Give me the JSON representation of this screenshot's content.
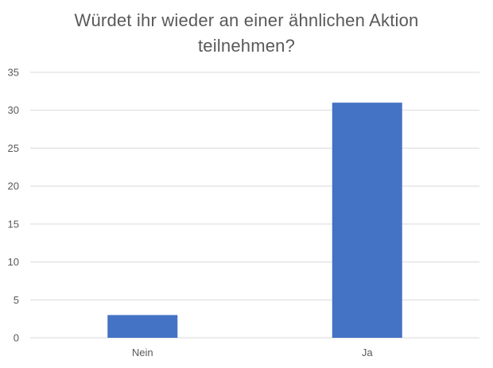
{
  "chart_data": {
    "type": "bar",
    "title_lines": [
      "Würdet ihr wieder an einer ähnlichen Aktion",
      "teilnehmen?"
    ],
    "categories": [
      "Nein",
      "Ja"
    ],
    "values": [
      3,
      31
    ],
    "ylim": [
      0,
      35
    ],
    "yticks": [
      0,
      5,
      10,
      15,
      20,
      25,
      30,
      35
    ],
    "xlabel": "",
    "ylabel": "",
    "grid": true,
    "legend": "none"
  },
  "colors": {
    "bar": "#4472C4",
    "grid": "#D9D9D9",
    "text": "#595959"
  }
}
